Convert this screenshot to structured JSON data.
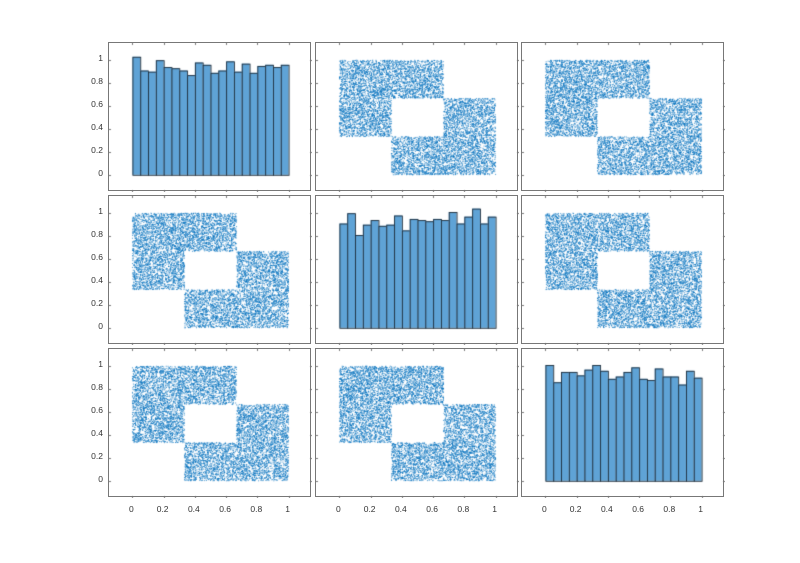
{
  "chart_data": {
    "type": "scatter_matrix",
    "title": "",
    "grid": false,
    "layout": {
      "rows": 3,
      "cols": 3
    },
    "axis_range": [
      -0.15,
      1.15
    ],
    "tick_values": [
      0,
      0.2,
      0.4,
      0.6,
      0.8,
      1
    ],
    "tick_labels": [
      "0",
      "0.2",
      "0.4",
      "0.6",
      "0.8",
      "1"
    ],
    "colors": {
      "bar_fill": "#5fa3d6",
      "bar_edge": "#1c2c3a",
      "scatter": "#0072bd",
      "axes": "#777777",
      "text": "#333333"
    },
    "scatter_region": {
      "description": "Uniform points on union of [0,0.667]x[0.333,1] and [0.333,1]x[0,0.667] minus hole [0.333,0.667]x[0.333,0.667]",
      "rects": [
        [
          0,
          0.333,
          0.667,
          1.0
        ],
        [
          0.333,
          0.0,
          1.0,
          0.667
        ]
      ],
      "hole": [
        0.333,
        0.333,
        0.667,
        0.667
      ],
      "points_per_panel": 9000
    },
    "panels": [
      {
        "row": 0,
        "col": 0,
        "type": "histogram",
        "bins": 20,
        "range": [
          0,
          1
        ],
        "values": [
          1.03,
          0.91,
          0.9,
          1.0,
          0.94,
          0.93,
          0.91,
          0.87,
          0.98,
          0.96,
          0.89,
          0.91,
          0.99,
          0.9,
          0.97,
          0.89,
          0.95,
          0.96,
          0.94,
          0.96
        ]
      },
      {
        "row": 0,
        "col": 1,
        "type": "scatter"
      },
      {
        "row": 0,
        "col": 2,
        "type": "scatter"
      },
      {
        "row": 1,
        "col": 0,
        "type": "scatter"
      },
      {
        "row": 1,
        "col": 1,
        "type": "histogram",
        "bins": 20,
        "range": [
          0,
          1
        ],
        "values": [
          0.91,
          1.0,
          0.81,
          0.9,
          0.94,
          0.89,
          0.9,
          0.98,
          0.85,
          0.95,
          0.94,
          0.93,
          0.95,
          0.94,
          1.01,
          0.91,
          0.97,
          1.04,
          0.91,
          0.97
        ]
      },
      {
        "row": 1,
        "col": 2,
        "type": "scatter"
      },
      {
        "row": 2,
        "col": 0,
        "type": "scatter"
      },
      {
        "row": 2,
        "col": 1,
        "type": "scatter"
      },
      {
        "row": 2,
        "col": 2,
        "type": "histogram",
        "bins": 20,
        "range": [
          0,
          1
        ],
        "values": [
          1.01,
          0.86,
          0.95,
          0.95,
          0.92,
          0.97,
          1.01,
          0.96,
          0.89,
          0.91,
          0.95,
          0.99,
          0.89,
          0.88,
          0.98,
          0.91,
          0.91,
          0.84,
          0.96,
          0.9
        ]
      }
    ],
    "y_axis_labels_on_col": 0,
    "x_axis_labels_on_row": 2
  }
}
